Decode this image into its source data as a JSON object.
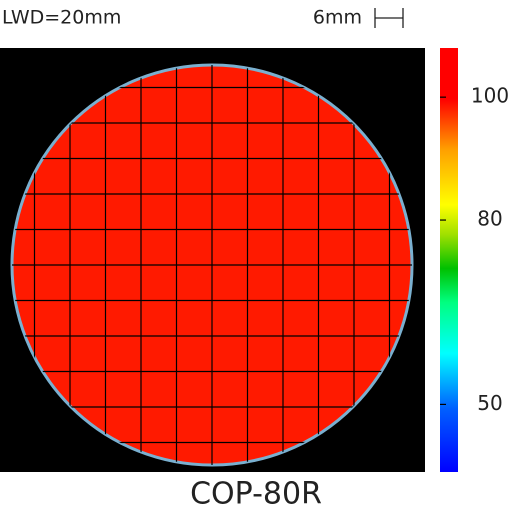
{
  "chart_data": {
    "type": "heatmap",
    "title": "COP-80R",
    "annotations": [
      "LWD=20mm",
      "6mm"
    ],
    "colorbar": {
      "lim": [
        39,
        108
      ],
      "ticks": [
        50,
        80,
        100
      ]
    }
  }
}
